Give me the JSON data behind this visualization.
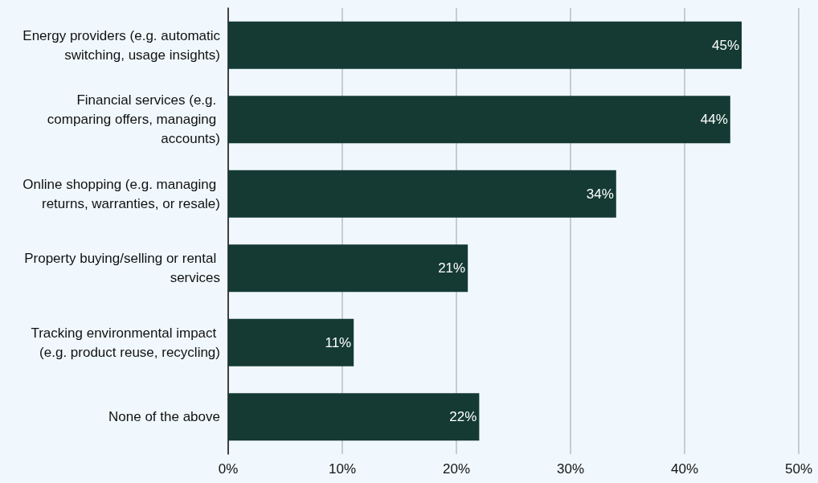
{
  "chart_data": {
    "type": "bar",
    "orientation": "horizontal",
    "categories": [
      "Energy providers (e.g. automatic switching, usage insights)",
      "Financial services (e.g. comparing offers, managing accounts)",
      "Online shopping (e.g. managing returns, warranties, or resale)",
      "Property buying/selling or rental services",
      "Tracking environmental impact (e.g. product reuse, recycling)",
      "None of the above"
    ],
    "values": [
      45,
      44,
      34,
      21,
      11,
      22
    ],
    "value_labels": [
      "45%",
      "44%",
      "34%",
      "21%",
      "11%",
      "22%"
    ],
    "color": "#143a33",
    "xlim": [
      0,
      50
    ],
    "xticks": [
      {
        "value": 0,
        "label": "0%"
      },
      {
        "value": 10,
        "label": "10%"
      },
      {
        "value": 20,
        "label": "20%"
      },
      {
        "value": 30,
        "label": "30%"
      },
      {
        "value": 40,
        "label": "40%"
      },
      {
        "value": 50,
        "label": "50%"
      }
    ],
    "grid": "x"
  }
}
